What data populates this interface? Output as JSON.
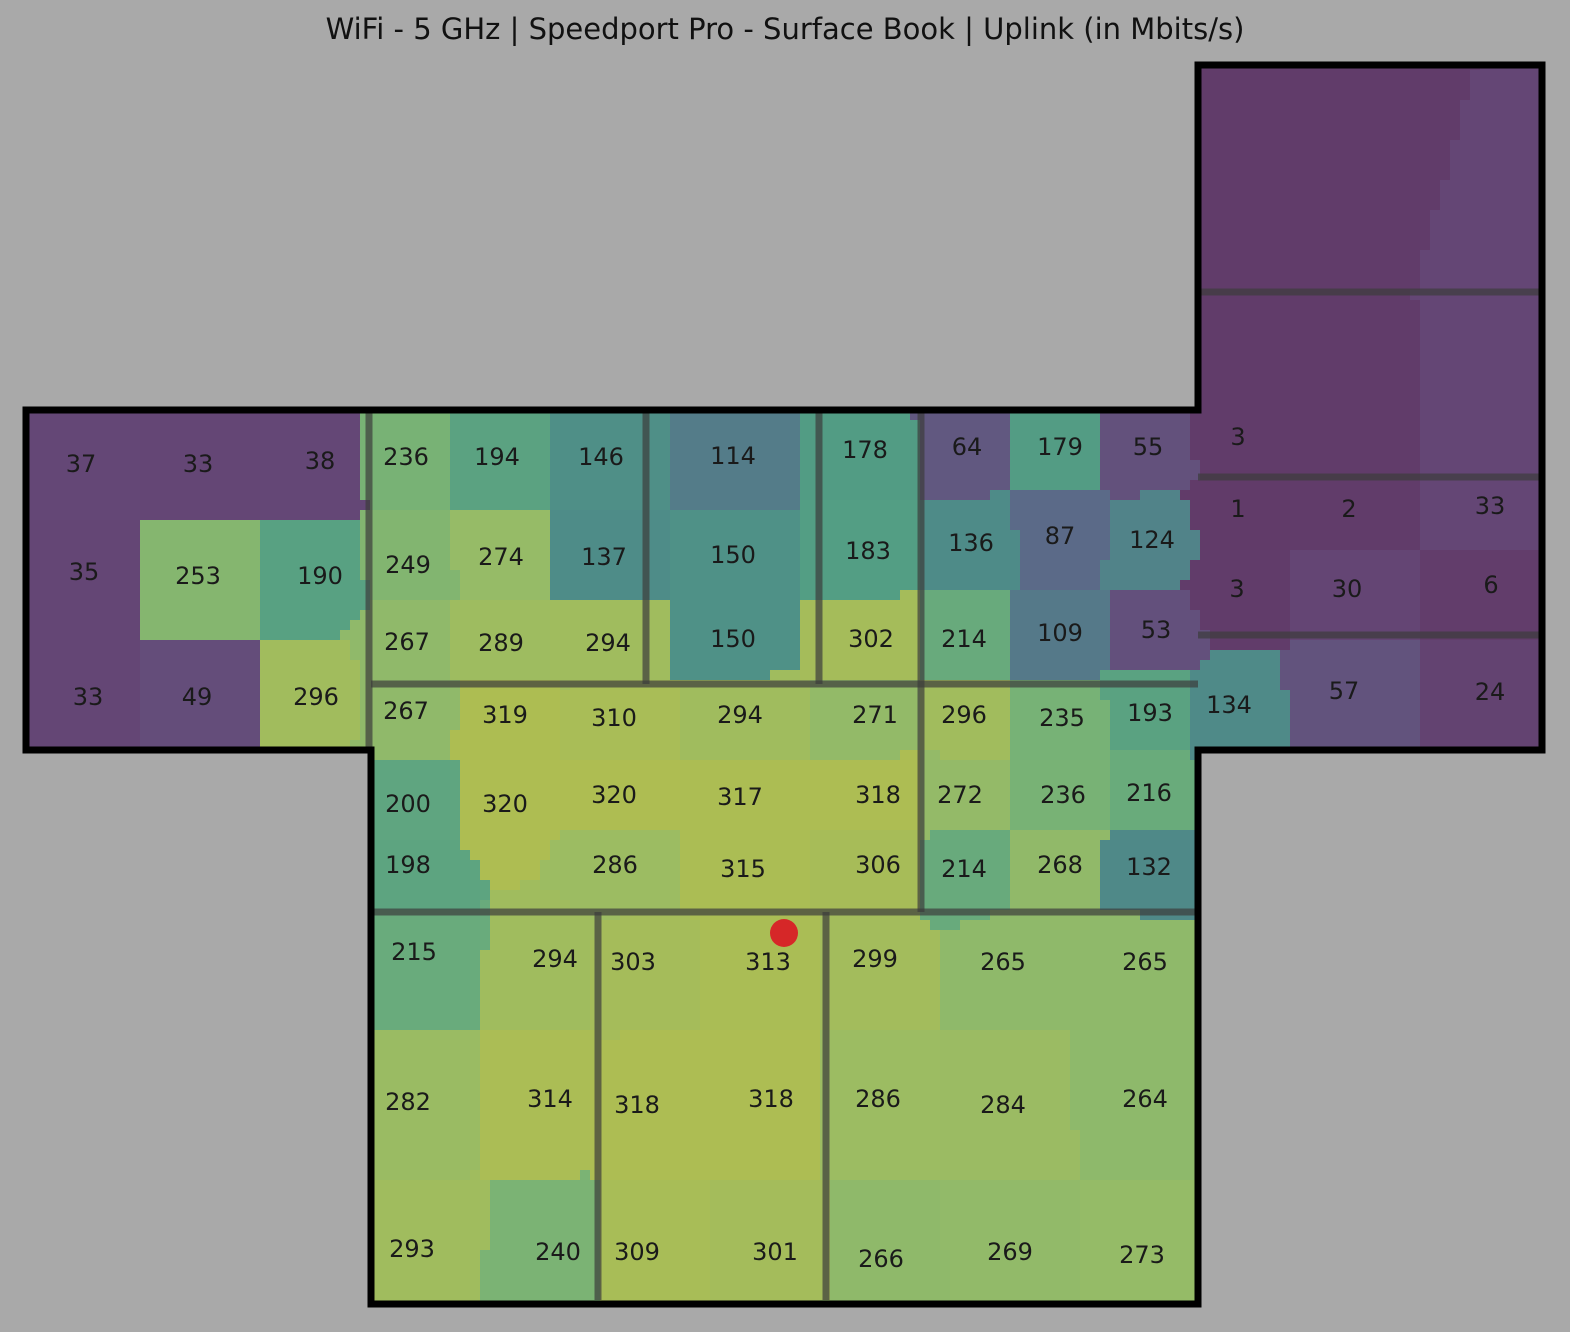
{
  "title": "WiFi - 5 GHz | Speedport Pro - Surface Book | Uplink (in Mbits/s)",
  "colors": {
    "background": "#a9a9a9",
    "outline": "#000000",
    "inner_wall": "#3c3c3c",
    "router_marker": "#d62728",
    "colormap": [
      "#613b69",
      "#654a79",
      "#5a6d8a",
      "#4e8c88",
      "#539e84",
      "#72b078",
      "#96bb67",
      "#aebd52"
    ],
    "value_range": [
      0,
      320
    ]
  },
  "router": {
    "label": "router-marker"
  },
  "measurements": [
    {
      "id": "m1",
      "value": 37
    },
    {
      "id": "m2",
      "value": 33
    },
    {
      "id": "m3",
      "value": 38
    },
    {
      "id": "m4",
      "value": 35
    },
    {
      "id": "m5",
      "value": 253
    },
    {
      "id": "m6",
      "value": 190
    },
    {
      "id": "m7",
      "value": 33
    },
    {
      "id": "m8",
      "value": 49
    },
    {
      "id": "m9",
      "value": 296
    },
    {
      "id": "m10",
      "value": 236
    },
    {
      "id": "m11",
      "value": 194
    },
    {
      "id": "m12",
      "value": 146
    },
    {
      "id": "m13",
      "value": 114
    },
    {
      "id": "m14",
      "value": 178
    },
    {
      "id": "m15",
      "value": 64
    },
    {
      "id": "m16",
      "value": 179
    },
    {
      "id": "m17",
      "value": 55
    },
    {
      "id": "m18",
      "value": 249
    },
    {
      "id": "m19",
      "value": 274
    },
    {
      "id": "m20",
      "value": 137
    },
    {
      "id": "m21",
      "value": 150
    },
    {
      "id": "m22",
      "value": 183
    },
    {
      "id": "m23",
      "value": 136
    },
    {
      "id": "m24",
      "value": 87
    },
    {
      "id": "m25",
      "value": 124
    },
    {
      "id": "m26",
      "value": 267
    },
    {
      "id": "m27",
      "value": 289
    },
    {
      "id": "m28",
      "value": 294
    },
    {
      "id": "m29",
      "value": 150
    },
    {
      "id": "m30",
      "value": 302
    },
    {
      "id": "m31",
      "value": 214
    },
    {
      "id": "m32",
      "value": 109
    },
    {
      "id": "m33",
      "value": 53
    },
    {
      "id": "m34",
      "value": 267
    },
    {
      "id": "m35",
      "value": 319
    },
    {
      "id": "m36",
      "value": 310
    },
    {
      "id": "m37",
      "value": 294
    },
    {
      "id": "m38",
      "value": 271
    },
    {
      "id": "m39",
      "value": 296
    },
    {
      "id": "m40",
      "value": 235
    },
    {
      "id": "m41",
      "value": 193
    },
    {
      "id": "m42",
      "value": 200
    },
    {
      "id": "m43",
      "value": 320
    },
    {
      "id": "m44",
      "value": 320
    },
    {
      "id": "m45",
      "value": 317
    },
    {
      "id": "m46",
      "value": 318
    },
    {
      "id": "m47",
      "value": 272
    },
    {
      "id": "m48",
      "value": 236
    },
    {
      "id": "m49",
      "value": 216
    },
    {
      "id": "m50",
      "value": 198
    },
    {
      "id": "m51",
      "value": 286
    },
    {
      "id": "m52",
      "value": 315
    },
    {
      "id": "m53",
      "value": 306
    },
    {
      "id": "m54",
      "value": 214
    },
    {
      "id": "m55",
      "value": 268
    },
    {
      "id": "m56",
      "value": 132
    },
    {
      "id": "m57",
      "value": 215
    },
    {
      "id": "m58",
      "value": 294
    },
    {
      "id": "m59",
      "value": 303
    },
    {
      "id": "m60",
      "value": 313
    },
    {
      "id": "m61",
      "value": 299
    },
    {
      "id": "m62",
      "value": 265
    },
    {
      "id": "m63",
      "value": 265
    },
    {
      "id": "m64",
      "value": 282
    },
    {
      "id": "m65",
      "value": 314
    },
    {
      "id": "m66",
      "value": 318
    },
    {
      "id": "m67",
      "value": 318
    },
    {
      "id": "m68",
      "value": 286
    },
    {
      "id": "m69",
      "value": 284
    },
    {
      "id": "m70",
      "value": 264
    },
    {
      "id": "m71",
      "value": 293
    },
    {
      "id": "m72",
      "value": 240
    },
    {
      "id": "m73",
      "value": 309
    },
    {
      "id": "m74",
      "value": 301
    },
    {
      "id": "m75",
      "value": 266
    },
    {
      "id": "m76",
      "value": 269
    },
    {
      "id": "m77",
      "value": 273
    },
    {
      "id": "m78",
      "value": 3
    },
    {
      "id": "m79",
      "value": 1
    },
    {
      "id": "m80",
      "value": 2
    },
    {
      "id": "m81",
      "value": 33
    },
    {
      "id": "m82",
      "value": 3
    },
    {
      "id": "m83",
      "value": 30
    },
    {
      "id": "m84",
      "value": 6
    },
    {
      "id": "m85",
      "value": 134
    },
    {
      "id": "m86",
      "value": 57
    },
    {
      "id": "m87",
      "value": 24
    }
  ]
}
